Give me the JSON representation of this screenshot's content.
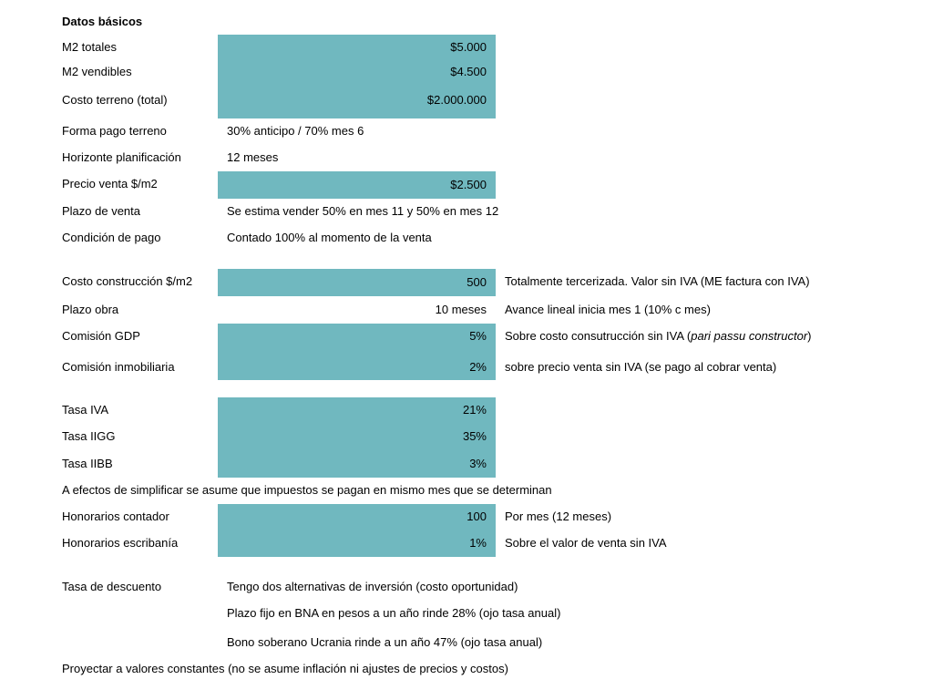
{
  "title": "Datos básicos",
  "rows": {
    "m2_totales": {
      "label": "M2 totales",
      "value": "$5.000"
    },
    "m2_vendibles": {
      "label": "M2 vendibles",
      "value": "$4.500"
    },
    "costo_terreno": {
      "label": "Costo terreno (total)",
      "value": "$2.000.000"
    },
    "forma_pago": {
      "label": "Forma pago terreno",
      "text": "30% anticipo / 70% mes 6"
    },
    "horizonte": {
      "label": "Horizonte planificación",
      "text": "12 meses"
    },
    "precio_venta": {
      "label": "Precio venta $/m2",
      "value": "$2.500"
    },
    "plazo_venta": {
      "label": "Plazo de venta",
      "text": "Se estima vender 50% en mes 11 y 50% en mes 12"
    },
    "condicion_pago": {
      "label": "Condición de pago",
      "text": "Contado 100% al momento de la venta"
    },
    "costo_construccion": {
      "label": "Costo construcción $/m2",
      "value": "500",
      "note": "Totalmente tercerizada. Valor sin IVA (ME factura con IVA)"
    },
    "plazo_obra": {
      "label": "Plazo obra",
      "value": "10 meses",
      "note": "Avance lineal inicia mes 1 (10% c mes)"
    },
    "comision_gdp": {
      "label": "Comisión GDP",
      "value": "5%",
      "note_before": "Sobre costo consutrucción sin IVA (",
      "note_italic": "pari passu constructor",
      "note_after": ")"
    },
    "comision_inmobiliaria": {
      "label": "Comisión inmobiliaria",
      "value": "2%",
      "note": "sobre precio venta sin IVA (se pago al cobrar venta)"
    },
    "tasa_iva": {
      "label": "Tasa IVA",
      "value": "21%"
    },
    "tasa_iigg": {
      "label": "Tasa IIGG",
      "value": "35%"
    },
    "tasa_iibb": {
      "label": "Tasa IIBB",
      "value": "3%"
    },
    "impuestos_nota": {
      "label": "A efectos de simplificar se asume que impuestos se pagan en mismo mes que se determinan"
    },
    "honorarios_contador": {
      "label": "Honorarios contador",
      "value": "100",
      "note": "Por mes (12 meses)"
    },
    "honorarios_escribania": {
      "label": "Honorarios escribanía",
      "value": "1%",
      "note": "Sobre el valor de venta sin IVA"
    },
    "tasa_descuento": {
      "label": "Tasa de descuento",
      "text": "Tengo dos alternativas de inversión (costo oportunidad)"
    },
    "plazo_fijo": {
      "text": "Plazo fijo en BNA en pesos a un año rinde 28% (ojo tasa anual)"
    },
    "bono": {
      "text": "Bono soberano Ucrania rinde a un año 47% (ojo tasa anual)"
    },
    "proyectar": {
      "label": "Proyectar a valores constantes (no se asume inflación ni ajustes de precios y costos)"
    }
  },
  "colors": {
    "cell_fill": "#70b8bf"
  }
}
